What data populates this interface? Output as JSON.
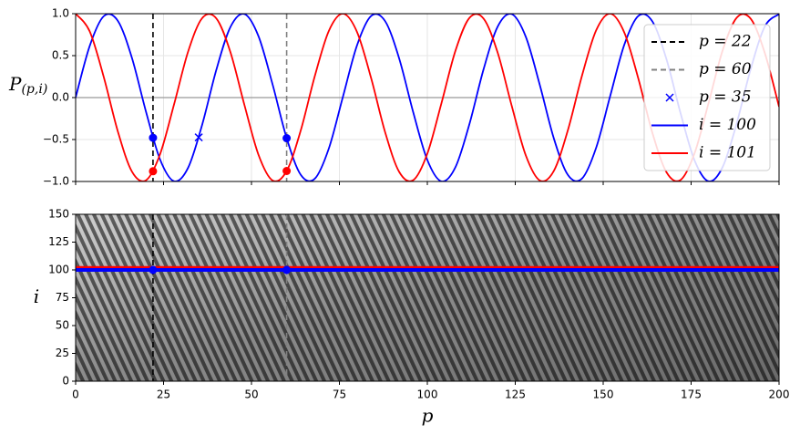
{
  "chart_data": [
    {
      "type": "line",
      "ylabel": "P",
      "ylabel_sub": "(p,i)",
      "xlim": [
        0,
        200
      ],
      "ylim": [
        -1,
        1
      ],
      "xticks": [
        0,
        25,
        50,
        75,
        100,
        125,
        150,
        175,
        200
      ],
      "show_xtick_labels": false,
      "yticks": [
        {
          "value": -1,
          "label": "−1.0"
        },
        {
          "value": -0.5,
          "label": "−0.5"
        },
        {
          "value": 0,
          "label": "0.0"
        },
        {
          "value": 0.5,
          "label": "0.5"
        },
        {
          "value": 1,
          "label": "1.0"
        }
      ],
      "grid": true,
      "baseline": 0,
      "legend": "upper right",
      "x": [
        0,
        4,
        8,
        12,
        16,
        20,
        24,
        28,
        32,
        36,
        40,
        44,
        48,
        52,
        56,
        60,
        64,
        68,
        72,
        76,
        80,
        84,
        88,
        92,
        96,
        100,
        104,
        108,
        112,
        116,
        120,
        124,
        128,
        132,
        136,
        140,
        144,
        148,
        152,
        156,
        160,
        164,
        168,
        172,
        176,
        180,
        184,
        188,
        192,
        196,
        200
      ],
      "series": [
        {
          "name": "i = 100",
          "color": "#0000ff",
          "values": [
            0,
            0.615,
            0.97,
            0.915,
            0.474,
            -0.167,
            -0.737,
            -0.997,
            -0.835,
            -0.32,
            0.33,
            0.84,
            0.996,
            0.731,
            0.157,
            -0.483,
            -0.92,
            -0.967,
            -0.606,
            0.01,
            0.622,
            0.972,
            0.911,
            0.465,
            -0.177,
            -0.744,
            -0.998,
            -0.829,
            -0.311,
            0.339,
            0.846,
            0.995,
            0.724,
            0.147,
            -0.491,
            -0.924,
            -0.964,
            -0.598,
            0.02,
            0.63,
            0.974,
            0.907,
            0.456,
            -0.187,
            -0.751,
            -0.998,
            -0.824,
            -0.301,
            0.349,
            0.851,
            0.994
          ]
        },
        {
          "name": "i = 101",
          "color": "#ff0000",
          "values": [
            1,
            0.789,
            0.245,
            -0.403,
            -0.881,
            -0.986,
            -0.676,
            -0.079,
            0.55,
            0.948,
            0.944,
            0.543,
            -0.089,
            -0.683,
            -0.988,
            -0.875,
            -0.393,
            0.255,
            0.795,
            1.0,
            0.783,
            0.235,
            -0.413,
            -0.886,
            -0.984,
            -0.668,
            -0.069,
            0.559,
            0.951,
            0.941,
            0.535,
            -0.099,
            -0.69,
            -0.989,
            -0.871,
            -0.383,
            0.265,
            0.801,
            1.0,
            0.776,
            0.225,
            -0.422,
            -0.89,
            -0.982,
            -0.661,
            -0.059,
            0.567,
            0.954,
            0.937,
            0.525,
            -0.109
          ]
        }
      ],
      "vlines": [
        {
          "name": "p = 22",
          "x": 22,
          "color": "#000000"
        },
        {
          "name": "p = 60",
          "x": 60,
          "color": "#808080"
        }
      ],
      "points": [
        {
          "name": "p = 35",
          "x": 35,
          "y": -0.474,
          "color": "#0000ff",
          "marker": "x"
        }
      ],
      "dots": [
        {
          "x": 22,
          "y": -0.479,
          "color": "#0000ff"
        },
        {
          "x": 22,
          "y": -0.878,
          "color": "#ff0000"
        },
        {
          "x": 60,
          "y": -0.484,
          "color": "#0000ff"
        },
        {
          "x": 60,
          "y": -0.875,
          "color": "#ff0000"
        }
      ]
    },
    {
      "type": "heatmap",
      "xlabel": "p",
      "ylabel": "i",
      "xlim": [
        0,
        200
      ],
      "ylim": [
        0,
        150
      ],
      "xticks": [
        0,
        25,
        50,
        75,
        100,
        125,
        150,
        175,
        200
      ],
      "show_xtick_labels": true,
      "yticks": [
        0,
        25,
        50,
        75,
        100,
        125,
        150
      ],
      "vlines": [
        {
          "x": 22,
          "color": "#000000"
        },
        {
          "x": 60,
          "color": "#808080"
        }
      ],
      "hlines": [
        {
          "y": 101,
          "color": "#ff0000",
          "width": 6
        },
        {
          "y": 100,
          "color": "#0000ff",
          "width": 4
        }
      ],
      "dots": [
        {
          "x": 22,
          "y": 100,
          "color": "#0000ff"
        },
        {
          "x": 60,
          "y": 100,
          "color": "#0000ff"
        }
      ]
    }
  ]
}
